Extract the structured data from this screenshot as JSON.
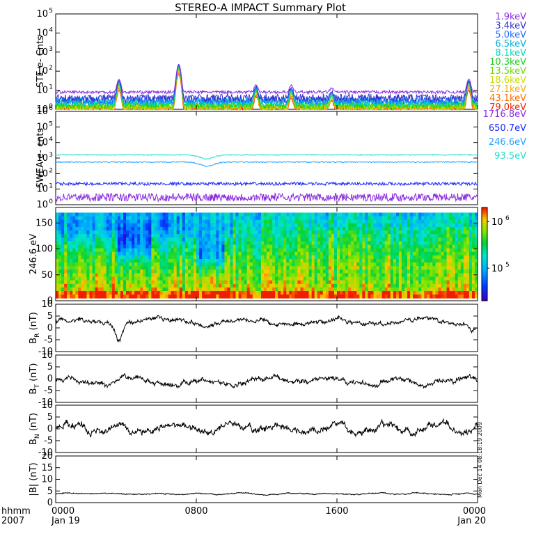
{
  "title": "STEREO-A IMPACT Summary Plot",
  "stamp": "Mon Dec 14 08:18:19 2009",
  "time_axis": {
    "corner_top": "hhmm",
    "corner_bottom": "2007",
    "ticks": [
      {
        "label": "0000",
        "sub": "Jan 19",
        "hour": 0
      },
      {
        "label": "0800",
        "sub": "",
        "hour": 8
      },
      {
        "label": "1600",
        "sub": "",
        "hour": 16
      },
      {
        "label": "0000",
        "sub": "Jan 20",
        "hour": 24
      }
    ]
  },
  "colors": {
    "ste": [
      "#8a2be2",
      "#3333cc",
      "#1f6fff",
      "#00b4d8",
      "#00d8c0",
      "#22cc22",
      "#66dd00",
      "#ccdd00",
      "#ffaa00",
      "#ff6a00",
      "#ee2200"
    ],
    "swea": [
      "#8a2be2",
      "#1a2aff",
      "#22a0ff",
      "#22ddcc"
    ]
  },
  "chart_data": [
    {
      "id": "ste",
      "type": "line",
      "ylabel": "STE e- Cnts",
      "yscale": "log",
      "ylim": [
        1,
        100000
      ],
      "yticks": [
        {
          "v": 1,
          "t": "10",
          "e": "0"
        },
        {
          "v": 10,
          "t": "10",
          "e": "1"
        },
        {
          "v": 100,
          "t": "10",
          "e": "2"
        },
        {
          "v": 1000,
          "t": "10",
          "e": "3"
        },
        {
          "v": 10000,
          "t": "10",
          "e": "4"
        },
        {
          "v": 100000,
          "t": "10",
          "e": "5"
        }
      ],
      "series": [
        {
          "name": "1.9keV",
          "level": 8
        },
        {
          "name": "3.4keV",
          "level": 4
        },
        {
          "name": "5.0keV",
          "level": 3
        },
        {
          "name": "6.5keV",
          "level": 2.6
        },
        {
          "name": "8.1keV",
          "level": 2.2
        },
        {
          "name": "10.3keV",
          "level": 1.8
        },
        {
          "name": "13.5keV",
          "level": 1.5
        },
        {
          "name": "18.6keV",
          "level": 1.3
        },
        {
          "name": "27.1keV",
          "level": 1.2
        },
        {
          "name": "43.1keV",
          "level": 1.1
        },
        {
          "name": "79.0keV",
          "level": 1.05
        }
      ],
      "spikes": [
        {
          "hour": 3.6,
          "peak": 30
        },
        {
          "hour": 7.0,
          "peak": 220
        },
        {
          "hour": 11.4,
          "peak": 12
        },
        {
          "hour": 13.4,
          "peak": 10
        },
        {
          "hour": 15.7,
          "peak": 5
        },
        {
          "hour": 23.5,
          "peak": 30
        }
      ]
    },
    {
      "id": "swea",
      "type": "line",
      "ylabel": "SWEA e- cnts",
      "yscale": "log",
      "ylim": [
        1,
        1000000
      ],
      "yticks": [
        {
          "v": 1,
          "t": "10",
          "e": "0"
        },
        {
          "v": 10,
          "t": "10",
          "e": "1"
        },
        {
          "v": 100,
          "t": "10",
          "e": "2"
        },
        {
          "v": 1000,
          "t": "10",
          "e": "3"
        },
        {
          "v": 10000,
          "t": "10",
          "e": "4"
        },
        {
          "v": 100000,
          "t": "10",
          "e": "5"
        },
        {
          "v": 1000000,
          "t": "10",
          "e": "6"
        }
      ],
      "series": [
        {
          "name": "1716.8eV",
          "level": 3
        },
        {
          "name": "650.7eV",
          "level": 22
        },
        {
          "name": "246.6eV",
          "level": 550
        },
        {
          "name": "93.5eV",
          "level": 1600
        }
      ]
    },
    {
      "id": "pad",
      "type": "heatmap",
      "ylabel": "246.6 eV",
      "ylim": [
        0,
        180
      ],
      "yticks": [
        0,
        50,
        100,
        150
      ],
      "colorbar": {
        "scale": "log",
        "range": [
          20000,
          2000000
        ],
        "ticks": [
          {
            "v": 100000,
            "t": "10",
            "e": "5"
          },
          {
            "v": 1000000,
            "t": "10",
            "e": "6"
          }
        ]
      },
      "features": [
        {
          "hour_start": 3.5,
          "hour_end": 5.5,
          "pa_center": 105,
          "depth": 0.8
        },
        {
          "hour_start": 8.0,
          "hour_end": 9.6,
          "pa_center": 90,
          "depth": 1.0
        },
        {
          "hour_start": 0.0,
          "hour_end": 10.0,
          "pa_center": 140,
          "depth": 0.5
        }
      ]
    },
    {
      "id": "br",
      "type": "line",
      "ylabel": {
        "base": "B",
        "sub": "R",
        "unit": "(nT)"
      },
      "ylim": [
        -10,
        10
      ],
      "yticks": [
        -10,
        -5,
        0,
        5,
        10
      ],
      "mean": 2.5,
      "amp": 2.5,
      "dips": [
        {
          "hour": 3.6,
          "value": -5
        },
        {
          "hour": 23.7,
          "value": -1
        }
      ]
    },
    {
      "id": "bt",
      "type": "line",
      "ylabel": {
        "base": "B",
        "sub": "T",
        "unit": "(nT)"
      },
      "ylim": [
        -10,
        10
      ],
      "yticks": [
        -10,
        -5,
        0,
        5,
        10
      ],
      "mean": -1,
      "amp": 3,
      "dips": []
    },
    {
      "id": "bn",
      "type": "line",
      "ylabel": {
        "base": "B",
        "sub": "N",
        "unit": "(nT)"
      },
      "ylim": [
        -10,
        10
      ],
      "yticks": [
        -10,
        -5,
        0,
        5,
        10
      ],
      "mean": 0,
      "amp": 4,
      "dips": []
    },
    {
      "id": "bmag",
      "type": "line",
      "ylabel": {
        "base": "|B|",
        "sub": "",
        "unit": "(nT)"
      },
      "ylim": [
        0,
        20
      ],
      "yticks": [
        0,
        5,
        10,
        15,
        20
      ],
      "mean": 3.8,
      "amp": 0.7,
      "dips": []
    }
  ]
}
